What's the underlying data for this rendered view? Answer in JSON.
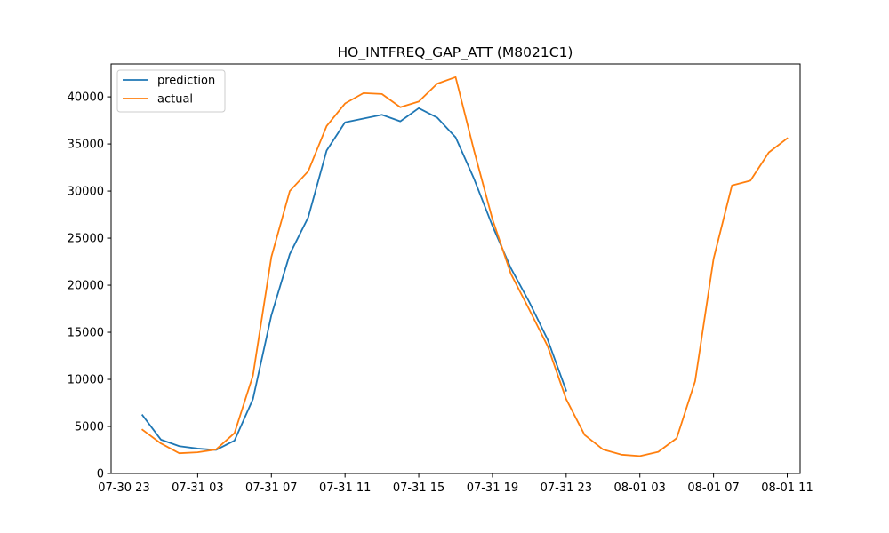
{
  "chart_data": {
    "type": "line",
    "title": "HO_INTFREQ_GAP_ATT (M8021C1)",
    "xlabel": "",
    "ylabel": "",
    "x_unit": "hour",
    "x_start": "07-31 00",
    "xlim": [
      -0.7,
      36.7
    ],
    "ylim": [
      0,
      43500
    ],
    "x_ticks": [
      {
        "value": 0,
        "label": "07-30 23"
      },
      {
        "value": 4,
        "label": "07-31 03"
      },
      {
        "value": 8,
        "label": "07-31 07"
      },
      {
        "value": 12,
        "label": "07-31 11"
      },
      {
        "value": 16,
        "label": "07-31 15"
      },
      {
        "value": 20,
        "label": "07-31 19"
      },
      {
        "value": 24,
        "label": "07-31 23"
      },
      {
        "value": 28,
        "label": "08-01 03"
      },
      {
        "value": 32,
        "label": "08-01 07"
      },
      {
        "value": 36,
        "label": "08-01 11"
      }
    ],
    "y_ticks": [
      {
        "value": 0,
        "label": "0"
      },
      {
        "value": 5000,
        "label": "5000"
      },
      {
        "value": 10000,
        "label": "10000"
      },
      {
        "value": 15000,
        "label": "15000"
      },
      {
        "value": 20000,
        "label": "20000"
      },
      {
        "value": 25000,
        "label": "25000"
      },
      {
        "value": 30000,
        "label": "30000"
      },
      {
        "value": 35000,
        "label": "35000"
      },
      {
        "value": 40000,
        "label": "40000"
      }
    ],
    "grid": false,
    "legend_position": "top-left",
    "series": [
      {
        "name": "prediction",
        "color": "#1f77b4",
        "x": [
          1,
          2,
          3,
          4,
          5,
          6,
          7,
          8,
          9,
          10,
          11,
          12,
          13,
          14,
          15,
          16,
          17,
          18,
          19,
          20,
          21,
          22,
          23,
          24
        ],
        "values": [
          6200,
          3600,
          2900,
          2650,
          2500,
          3500,
          7900,
          16800,
          23300,
          27200,
          34300,
          37300,
          37700,
          38100,
          37400,
          38800,
          37800,
          35700,
          31300,
          26300,
          21800,
          18200,
          14200,
          8800
        ]
      },
      {
        "name": "actual",
        "color": "#ff7f0e",
        "x": [
          1,
          2,
          3,
          4,
          5,
          6,
          7,
          8,
          9,
          10,
          11,
          12,
          13,
          14,
          15,
          16,
          17,
          18,
          19,
          20,
          21,
          22,
          23,
          24,
          25,
          26,
          27,
          28,
          29,
          30,
          31,
          32,
          33,
          34,
          35,
          36
        ],
        "values": [
          4650,
          3200,
          2150,
          2250,
          2550,
          4300,
          10400,
          23000,
          30000,
          32100,
          36900,
          39300,
          40400,
          40300,
          38900,
          39500,
          41400,
          42100,
          34300,
          27000,
          21200,
          17400,
          13500,
          7900,
          4100,
          2550,
          2000,
          1850,
          2300,
          3750,
          9800,
          22800,
          30600,
          31100,
          34100,
          35600
        ]
      }
    ]
  }
}
